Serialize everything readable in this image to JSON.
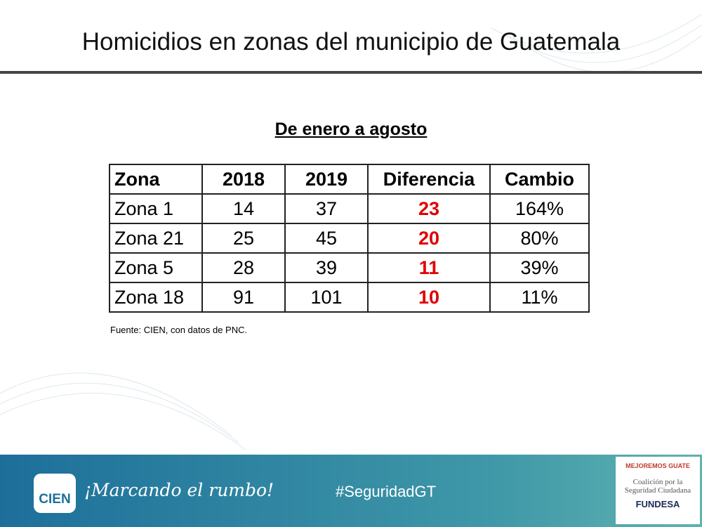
{
  "header": {
    "title": "Homicidios en zonas del municipio de Guatemala"
  },
  "subtitle": "De enero a agosto",
  "table": {
    "columns": [
      "Zona",
      "2018",
      "2019",
      "Diferencia",
      "Cambio"
    ],
    "rows": [
      [
        "Zona 1",
        14,
        37,
        23,
        "164%"
      ],
      [
        "Zona 21",
        25,
        45,
        20,
        "80%"
      ],
      [
        "Zona 5",
        28,
        39,
        11,
        "39%"
      ],
      [
        "Zona 18",
        91,
        101,
        10,
        "11%"
      ]
    ]
  },
  "source": "Fuente: CIEN, con datos de PNC.",
  "footer": {
    "logo": "CIEN",
    "slogan": "¡Marcando el rumbo!",
    "hashtag": "#SeguridadGT",
    "partner": {
      "brand": "MEJOREMOS GUATE",
      "coalition": "Coalición por la Seguridad Ciudadana",
      "org": "FUNDESA"
    }
  }
}
